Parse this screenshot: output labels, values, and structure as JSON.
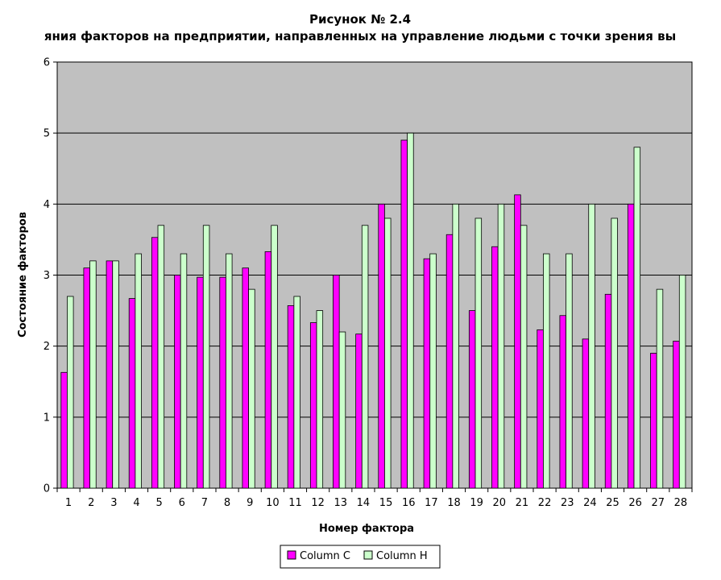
{
  "colors": {
    "background": "#ffffff",
    "plot_area": "#c0c0c0",
    "gridline": "#000000",
    "series_c": "#ff00ff",
    "series_h": "#ccffcc",
    "bar_outline": "#000000"
  },
  "chart_data": {
    "type": "bar",
    "title": "Рисунок № 2.4",
    "subtitle": "яния факторов на предприятии, направленных на управление людьми с точки зрения вы",
    "xlabel": "Номер фактора",
    "ylabel": "Состояние факторов",
    "ylim": [
      0,
      6
    ],
    "yticks": [
      "0",
      "1",
      "2",
      "3",
      "4",
      "5",
      "6"
    ],
    "grid": true,
    "legend_position": "bottom",
    "categories": [
      "1",
      "2",
      "3",
      "4",
      "5",
      "6",
      "7",
      "8",
      "9",
      "10",
      "11",
      "12",
      "13",
      "14",
      "15",
      "16",
      "17",
      "18",
      "19",
      "20",
      "21",
      "22",
      "23",
      "24",
      "25",
      "26",
      "27",
      "28"
    ],
    "series": [
      {
        "name": "Column C",
        "color": "#ff00ff",
        "values": [
          1.63,
          3.1,
          3.2,
          2.67,
          3.53,
          3.0,
          2.97,
          2.97,
          3.1,
          3.33,
          2.57,
          2.33,
          3.0,
          2.17,
          4.0,
          4.9,
          3.23,
          3.57,
          2.5,
          3.4,
          4.13,
          2.23,
          2.43,
          2.1,
          2.73,
          4.0,
          1.9,
          2.07
        ]
      },
      {
        "name": "Column H",
        "color": "#ccffcc",
        "values": [
          2.7,
          3.2,
          3.2,
          3.3,
          3.7,
          3.3,
          3.7,
          3.3,
          2.8,
          3.7,
          2.7,
          2.5,
          2.2,
          3.7,
          3.8,
          5.0,
          3.3,
          4.0,
          3.8,
          4.0,
          3.7,
          3.3,
          3.3,
          4.0,
          3.8,
          4.8,
          2.8,
          3.0
        ]
      }
    ]
  }
}
